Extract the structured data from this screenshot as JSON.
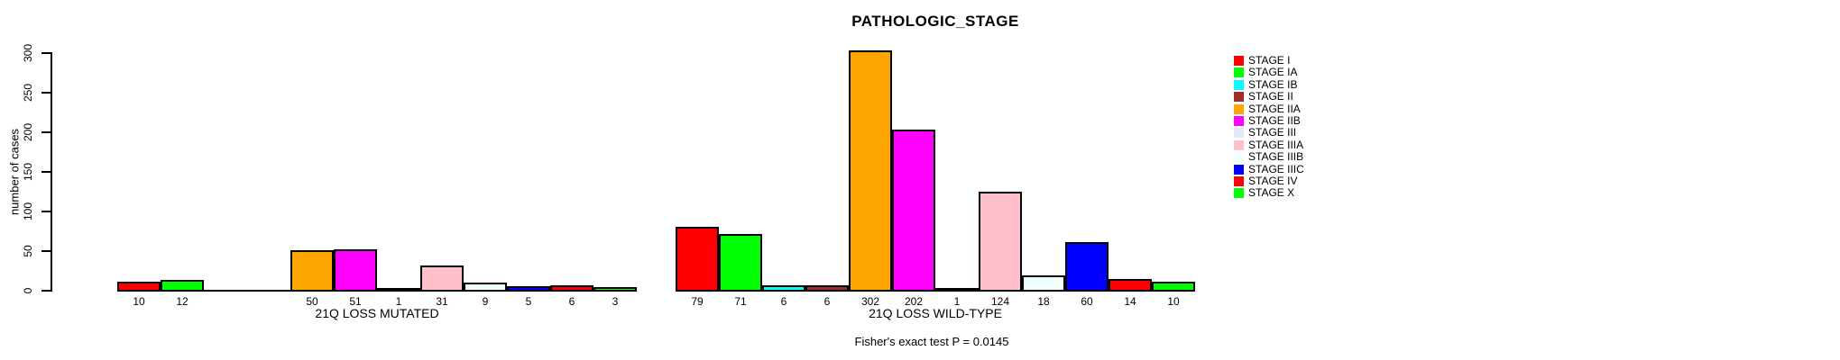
{
  "chart_data": {
    "type": "bar",
    "title": "PATHOLOGIC_STAGE",
    "ylabel": "number of cases",
    "ylim": [
      0,
      300
    ],
    "y_ticks": [
      0,
      50,
      100,
      150,
      200,
      250,
      300
    ],
    "grid": false,
    "legend_position": "right",
    "annotation": "Fisher's exact test P = 0.0145",
    "groups": [
      {
        "label": "21Q LOSS MUTATED"
      },
      {
        "label": "21Q LOSS WILD-TYPE"
      }
    ],
    "series": [
      {
        "name": "STAGE I",
        "color": "#FF0000",
        "values": [
          10,
          79
        ]
      },
      {
        "name": "STAGE IA",
        "color": "#00FF00",
        "values": [
          12,
          71
        ]
      },
      {
        "name": "STAGE IB",
        "color": "#00FFFF",
        "values": [
          null,
          6
        ]
      },
      {
        "name": "STAGE II",
        "color": "#A52A2A",
        "values": [
          null,
          6
        ]
      },
      {
        "name": "STAGE IIA",
        "color": "#FFA500",
        "values": [
          50,
          302
        ]
      },
      {
        "name": "STAGE IIB",
        "color": "#FF00FF",
        "values": [
          51,
          202
        ]
      },
      {
        "name": "STAGE III",
        "color": "#E6E6FA",
        "values": [
          1,
          1
        ]
      },
      {
        "name": "STAGE IIIA",
        "color": "#FFC0CB",
        "values": [
          31,
          124
        ]
      },
      {
        "name": "STAGE IIIB",
        "color": "#F0FFFF",
        "values": [
          9,
          18
        ]
      },
      {
        "name": "STAGE IIIC",
        "color": "#0000FF",
        "values": [
          5,
          60
        ]
      },
      {
        "name": "STAGE IV",
        "color": "#FF0000",
        "values": [
          6,
          14
        ]
      },
      {
        "name": "STAGE X",
        "color": "#00FF00",
        "values": [
          3,
          10
        ]
      }
    ]
  }
}
